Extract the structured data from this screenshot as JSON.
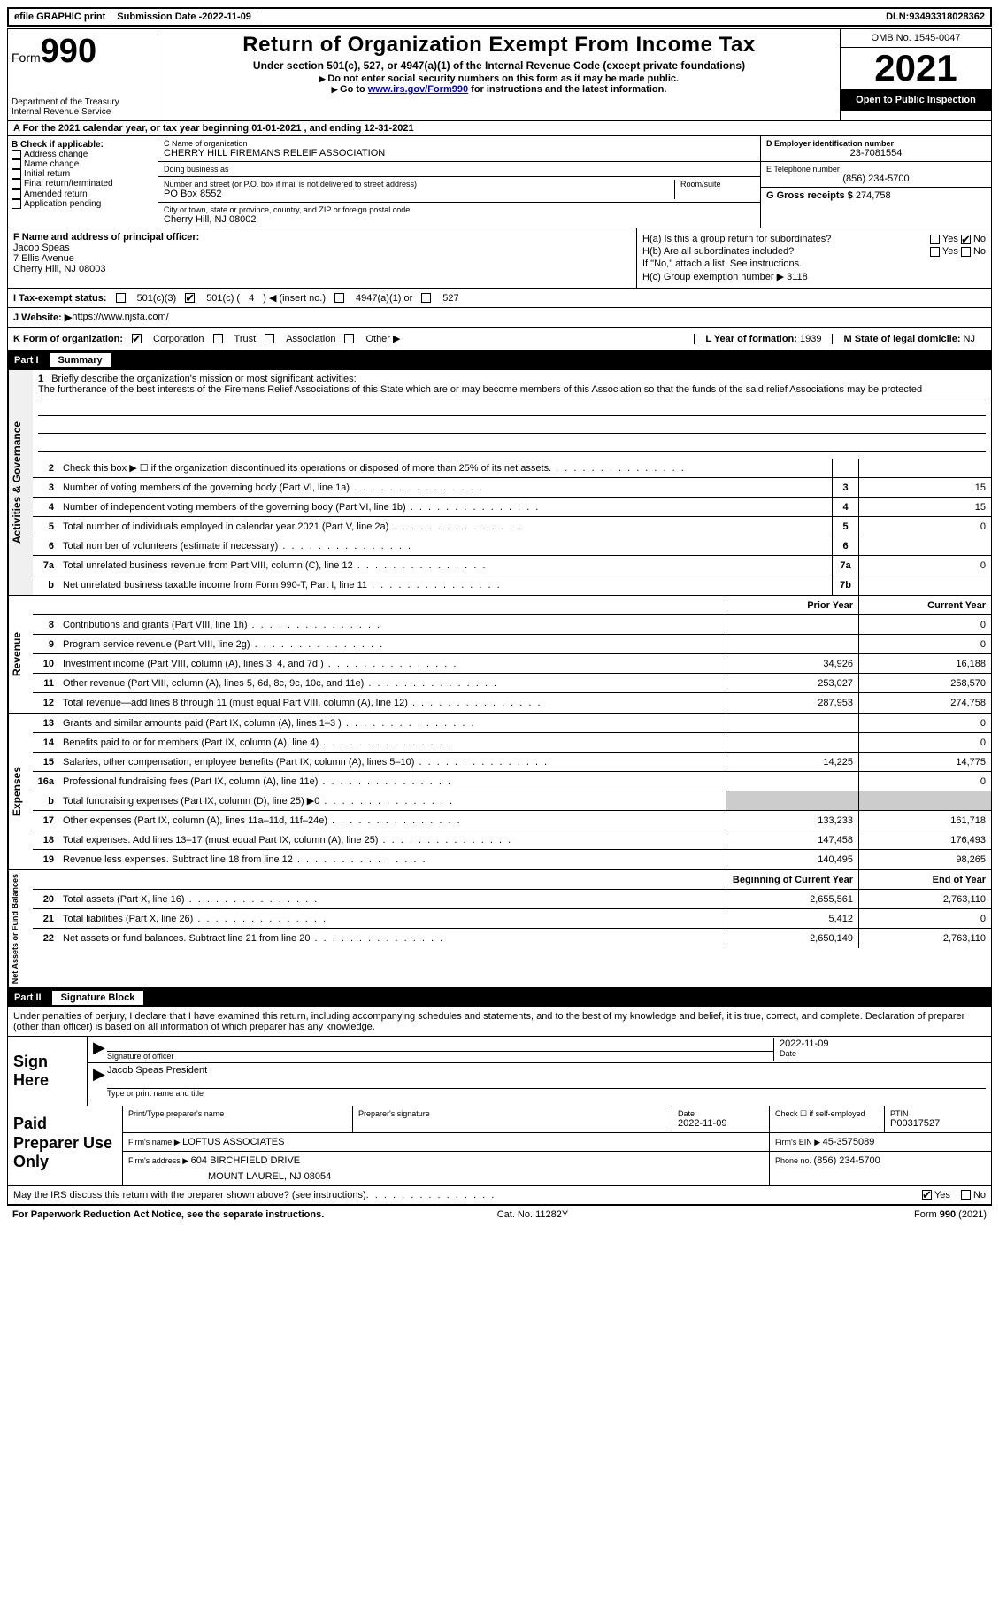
{
  "topbar": {
    "efile": "efile GRAPHIC print",
    "submission_label": "Submission Date - ",
    "submission_date": "2022-11-09",
    "dln_label": "DLN: ",
    "dln": "93493318028362"
  },
  "header": {
    "form_label": "Form",
    "form_number": "990",
    "dept": "Department of the Treasury",
    "irs": "Internal Revenue Service",
    "title": "Return of Organization Exempt From Income Tax",
    "subtitle": "Under section 501(c), 527, or 4947(a)(1) of the Internal Revenue Code (except private foundations)",
    "warn": "Do not enter social security numbers on this form as it may be made public.",
    "goto_pre": "Go to ",
    "goto_link": "www.irs.gov/Form990",
    "goto_post": " for instructions and the latest information.",
    "omb": "OMB No. 1545-0047",
    "year": "2021",
    "open": "Open to Public Inspection"
  },
  "rowA": {
    "text_pre": "A For the 2021 calendar year, or tax year beginning ",
    "begin": "01-01-2021",
    "mid": " , and ending ",
    "end": "12-31-2021"
  },
  "B": {
    "label": "B Check if applicable:",
    "items": [
      "Address change",
      "Name change",
      "Initial return",
      "Final return/terminated",
      "Amended return",
      "Application pending"
    ]
  },
  "C": {
    "name_label": "C Name of organization",
    "name": "CHERRY HILL FIREMANS RELEIF ASSOCIATION",
    "dba": "Doing business as",
    "addr_label": "Number and street (or P.O. box if mail is not delivered to street address)",
    "room_label": "Room/suite",
    "addr": "PO Box 8552",
    "city_label": "City or town, state or province, country, and ZIP or foreign postal code",
    "city": "Cherry Hill, NJ  08002"
  },
  "D": {
    "ein_label": "D Employer identification number",
    "ein": "23-7081554",
    "phone_label": "E Telephone number",
    "phone": "(856) 234-5700",
    "gross_label": "G Gross receipts $ ",
    "gross": "274,758"
  },
  "F": {
    "label": "F  Name and address of principal officer:",
    "name": "Jacob Speas",
    "street": "7 Ellis Avenue",
    "city": "Cherry Hill, NJ  08003"
  },
  "H": {
    "a": "H(a)  Is this a group return for subordinates?",
    "b": "H(b)  Are all subordinates included?",
    "b_note": "If \"No,\" attach a list. See instructions.",
    "c_label": "H(c)  Group exemption number ▶  ",
    "c_val": "3118",
    "yes": "Yes",
    "no": "No"
  },
  "I": {
    "label": "I  Tax-exempt status:",
    "c3": "501(c)(3)",
    "c_pre": "501(c) ( ",
    "c_num": "4",
    "c_post": " ) ◀ (insert no.)",
    "a1": "4947(a)(1) or",
    "s527": "527"
  },
  "J": {
    "label": "J  Website: ▶  ",
    "url": "https://www.njsfa.com/"
  },
  "K": {
    "label": "K Form of organization:",
    "opts": [
      "Corporation",
      "Trust",
      "Association",
      "Other ▶"
    ],
    "L_label": "L Year of formation: ",
    "L_val": "1939",
    "M_label": "M State of legal domicile: ",
    "M_val": "NJ"
  },
  "part1": {
    "tag": "Part I",
    "title": "Summary"
  },
  "mission": {
    "num": "1",
    "label": "Briefly describe the organization's mission or most significant activities:",
    "text": "The furtherance of the best interests of the Firemens Relief Associations of this State which are or may become members of this Association so that the funds of the said relief Associations may be protected"
  },
  "gov_lines": [
    {
      "n": "2",
      "t": "Check this box ▶ ☐  if the organization discontinued its operations or disposed of more than 25% of its net assets.",
      "box": "",
      "v": ""
    },
    {
      "n": "3",
      "t": "Number of voting members of the governing body (Part VI, line 1a)",
      "box": "3",
      "v": "15"
    },
    {
      "n": "4",
      "t": "Number of independent voting members of the governing body (Part VI, line 1b)",
      "box": "4",
      "v": "15"
    },
    {
      "n": "5",
      "t": "Total number of individuals employed in calendar year 2021 (Part V, line 2a)",
      "box": "5",
      "v": "0"
    },
    {
      "n": "6",
      "t": "Total number of volunteers (estimate if necessary)",
      "box": "6",
      "v": ""
    },
    {
      "n": "7a",
      "t": "Total unrelated business revenue from Part VIII, column (C), line 12",
      "box": "7a",
      "v": "0"
    },
    {
      "n": "b",
      "t": "Net unrelated business taxable income from Form 990-T, Part I, line 11",
      "box": "7b",
      "v": ""
    }
  ],
  "col_headers": {
    "prior": "Prior Year",
    "current": "Current Year",
    "begin": "Beginning of Current Year",
    "end": "End of Year"
  },
  "revenue": [
    {
      "n": "8",
      "t": "Contributions and grants (Part VIII, line 1h)",
      "p": "",
      "c": "0"
    },
    {
      "n": "9",
      "t": "Program service revenue (Part VIII, line 2g)",
      "p": "",
      "c": "0"
    },
    {
      "n": "10",
      "t": "Investment income (Part VIII, column (A), lines 3, 4, and 7d )",
      "p": "34,926",
      "c": "16,188"
    },
    {
      "n": "11",
      "t": "Other revenue (Part VIII, column (A), lines 5, 6d, 8c, 9c, 10c, and 11e)",
      "p": "253,027",
      "c": "258,570"
    },
    {
      "n": "12",
      "t": "Total revenue—add lines 8 through 11 (must equal Part VIII, column (A), line 12)",
      "p": "287,953",
      "c": "274,758"
    }
  ],
  "expenses": [
    {
      "n": "13",
      "t": "Grants and similar amounts paid (Part IX, column (A), lines 1–3 )",
      "p": "",
      "c": "0"
    },
    {
      "n": "14",
      "t": "Benefits paid to or for members (Part IX, column (A), line 4)",
      "p": "",
      "c": "0"
    },
    {
      "n": "15",
      "t": "Salaries, other compensation, employee benefits (Part IX, column (A), lines 5–10)",
      "p": "14,225",
      "c": "14,775"
    },
    {
      "n": "16a",
      "t": "Professional fundraising fees (Part IX, column (A), line 11e)",
      "p": "",
      "c": "0"
    },
    {
      "n": "b",
      "t": "Total fundraising expenses (Part IX, column (D), line 25) ▶0",
      "p": "grey",
      "c": "grey"
    },
    {
      "n": "17",
      "t": "Other expenses (Part IX, column (A), lines 11a–11d, 11f–24e)",
      "p": "133,233",
      "c": "161,718"
    },
    {
      "n": "18",
      "t": "Total expenses. Add lines 13–17 (must equal Part IX, column (A), line 25)",
      "p": "147,458",
      "c": "176,493"
    },
    {
      "n": "19",
      "t": "Revenue less expenses. Subtract line 18 from line 12",
      "p": "140,495",
      "c": "98,265"
    }
  ],
  "netassets": [
    {
      "n": "20",
      "t": "Total assets (Part X, line 16)",
      "p": "2,655,561",
      "c": "2,763,110"
    },
    {
      "n": "21",
      "t": "Total liabilities (Part X, line 26)",
      "p": "5,412",
      "c": "0"
    },
    {
      "n": "22",
      "t": "Net assets or fund balances. Subtract line 21 from line 20",
      "p": "2,650,149",
      "c": "2,763,110"
    }
  ],
  "vtabs": {
    "gov": "Activities & Governance",
    "rev": "Revenue",
    "exp": "Expenses",
    "net": "Net Assets or Fund Balances"
  },
  "part2": {
    "tag": "Part II",
    "title": "Signature Block"
  },
  "penalty": "Under penalties of perjury, I declare that I have examined this return, including accompanying schedules and statements, and to the best of my knowledge and belief, it is true, correct, and complete. Declaration of preparer (other than officer) is based on all information of which preparer has any knowledge.",
  "sign": {
    "here": "Sign Here",
    "sig_lbl": "Signature of officer",
    "date_lbl": "Date",
    "date": "2022-11-09",
    "name": "Jacob Speas  President",
    "name_lbl": "Type or print name and title"
  },
  "paid": {
    "label": "Paid Preparer Use Only",
    "prep_name_lbl": "Print/Type preparer's name",
    "prep_sig_lbl": "Preparer's signature",
    "date_lbl": "Date",
    "date": "2022-11-09",
    "self_lbl": "Check ☐ if self-employed",
    "ptin_lbl": "PTIN",
    "ptin": "P00317527",
    "firm_name_lbl": "Firm's name    ▶ ",
    "firm_name": "LOFTUS ASSOCIATES",
    "firm_ein_lbl": "Firm's EIN ▶ ",
    "firm_ein": "45-3575089",
    "firm_addr_lbl": "Firm's address ▶ ",
    "firm_addr1": "604 BIRCHFIELD DRIVE",
    "firm_addr2": "MOUNT LAUREL, NJ  08054",
    "phone_lbl": "Phone no. ",
    "phone": "(856) 234-5700"
  },
  "discuss": {
    "q": "May the IRS discuss this return with the preparer shown above? (see instructions)",
    "yes": "Yes",
    "no": "No"
  },
  "footer": {
    "pra": "For Paperwork Reduction Act Notice, see the separate instructions.",
    "cat": "Cat. No. 11282Y",
    "form": "Form 990 (2021)"
  }
}
